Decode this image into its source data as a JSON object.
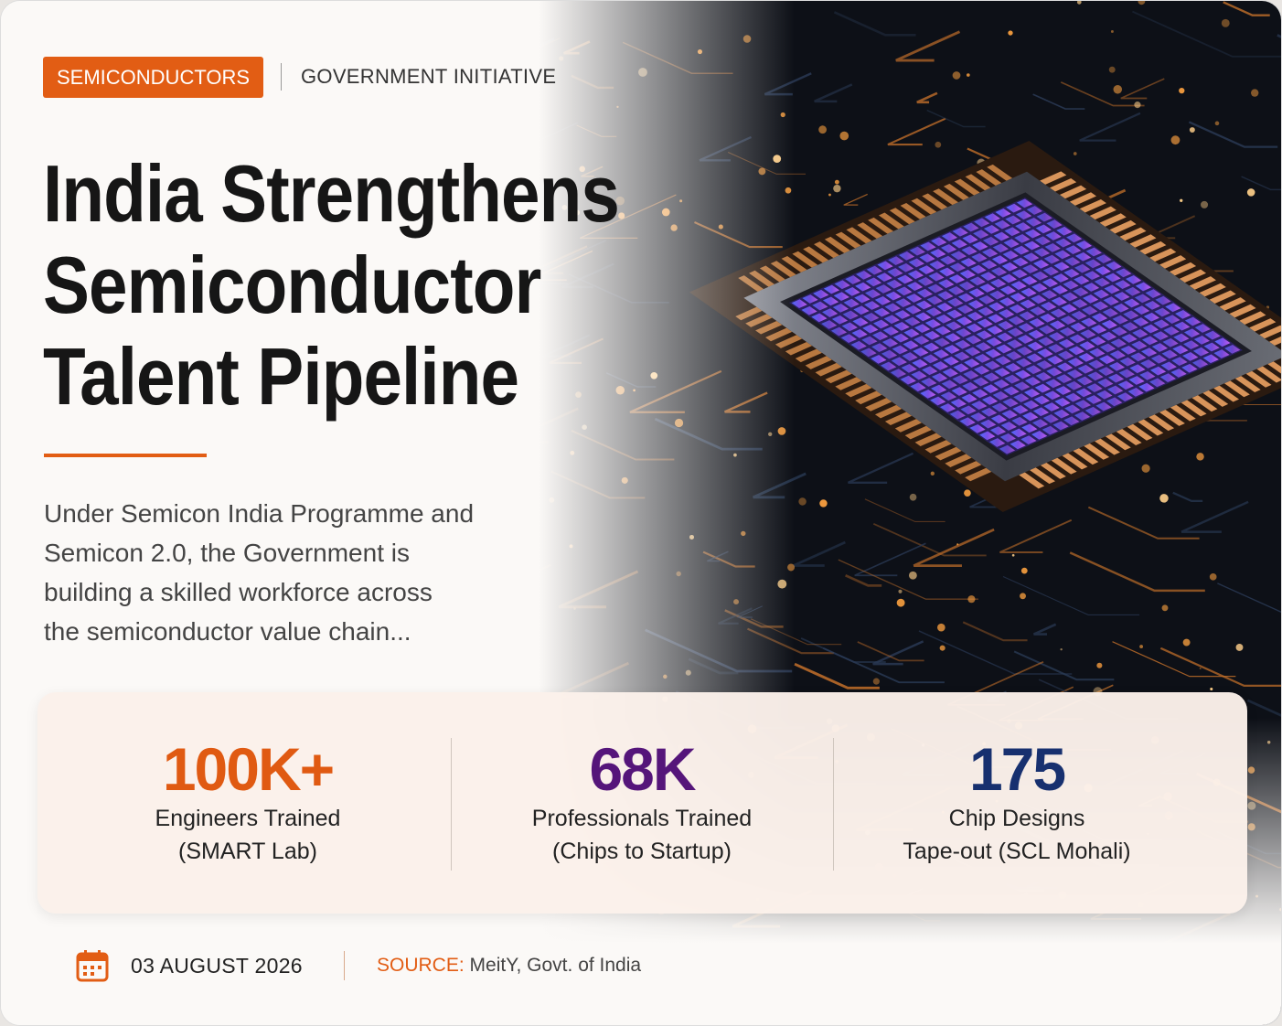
{
  "header": {
    "tag": "SEMICONDUCTORS",
    "category": "GOVERNMENT INITIATIVE"
  },
  "title": [
    "India Strengthens",
    "Semiconductor",
    "Talent Pipeline"
  ],
  "summary": [
    "Under Semicon India Programme and",
    "Semicon 2.0, the Government is",
    "building a skilled workforce across",
    "the semiconductor value chain..."
  ],
  "stats": [
    {
      "value": "100K+",
      "color": "#e05a12",
      "label": [
        "Engineers Trained",
        "(SMART Lab)"
      ]
    },
    {
      "value": "68K",
      "color": "#55157a",
      "label": [
        "Professionals Trained",
        "(Chips to Startup)"
      ]
    },
    {
      "value": "175",
      "color": "#17306f",
      "label": [
        "Chip Designs",
        "Tape-out (SCL Mohali)"
      ]
    }
  ],
  "footer": {
    "date": "03 AUGUST 2026",
    "source_label": "SOURCE:",
    "source": "MeitY, Govt. of India"
  }
}
